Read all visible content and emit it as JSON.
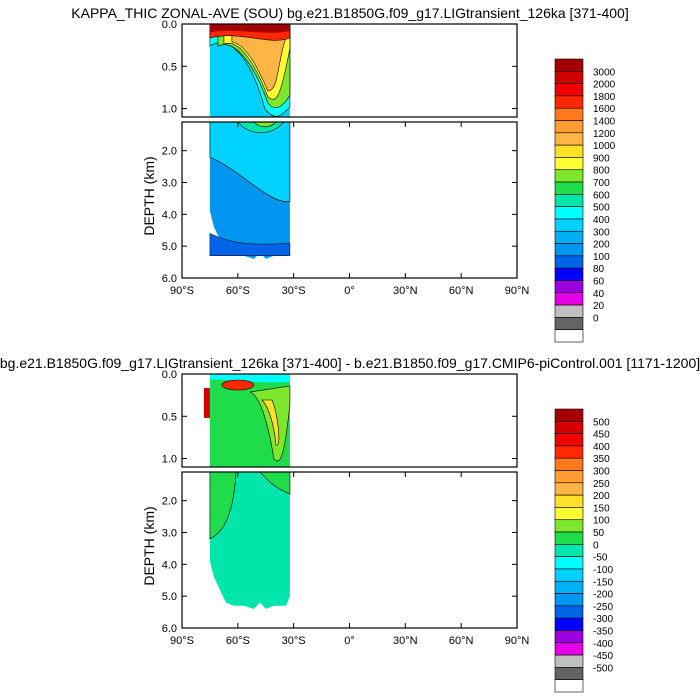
{
  "chart_data": [
    {
      "type": "heatmap",
      "title": "KAPPA_THIC ZONAL-AVE (SOU) bg.e21.B1850G.f09_g17.LIGtransient_126ka [371-400]",
      "ylabel": "DEPTH (km)",
      "xlabel": "",
      "x_ticks": [
        "90°S",
        "60°S",
        "30°S",
        "0°",
        "30°N",
        "60°N",
        "90°N"
      ],
      "x_tick_values": [
        -90,
        -60,
        -30,
        0,
        30,
        60,
        90
      ],
      "y_ticks_upper": [
        "0.0",
        "0.5",
        "1.0"
      ],
      "y_tick_values_upper": [
        0,
        0.5,
        1.0
      ],
      "y_ticks_lower": [
        "2.0",
        "3.0",
        "4.0",
        "5.0",
        "6.0"
      ],
      "y_tick_values_lower": [
        2,
        3,
        4,
        5,
        6
      ],
      "xlim": [
        -90,
        90
      ],
      "ylim_upper": [
        0,
        1.1
      ],
      "ylim_lower": [
        1.1,
        6
      ],
      "data_extent_lat": [
        -75,
        -32
      ],
      "colorbar_labels": [
        "3000",
        "2000",
        "1800",
        "1600",
        "1400",
        "1200",
        "1000",
        "900",
        "800",
        "700",
        "600",
        "500",
        "400",
        "300",
        "200",
        "100",
        "80",
        "60",
        "40",
        "20",
        "0"
      ],
      "colorbar_colors": [
        "#a50000",
        "#d40000",
        "#f20000",
        "#ff2800",
        "#ff7a1e",
        "#ff9c32",
        "#ffb446",
        "#ffe028",
        "#ffff33",
        "#7de62d",
        "#1edc4a",
        "#00e6aa",
        "#00ffff",
        "#00d2ff",
        "#00b0f5",
        "#0096f0",
        "#0064e6",
        "#0000ff",
        "#9b00e0",
        "#e600e6",
        "#c0c0c0",
        "#646464",
        "#ffffff"
      ]
    },
    {
      "type": "heatmap",
      "title": "bg.e21.B1850G.f09_g17.LIGtransient_126ka [371-400] - b.e21.B1850.f09_g17.CMIP6-piControl.001 [1171-1200]",
      "ylabel": "DEPTH (km)",
      "xlabel": "",
      "x_ticks": [
        "90°S",
        "60°S",
        "30°S",
        "0°",
        "30°N",
        "60°N",
        "90°N"
      ],
      "x_tick_values": [
        -90,
        -60,
        -30,
        0,
        30,
        60,
        90
      ],
      "y_ticks_upper": [
        "0.0",
        "0.5",
        "1.0"
      ],
      "y_tick_values_upper": [
        0,
        0.5,
        1.0
      ],
      "y_ticks_lower": [
        "2.0",
        "3.0",
        "4.0",
        "5.0",
        "6.0"
      ],
      "y_tick_values_lower": [
        2,
        3,
        4,
        5,
        6
      ],
      "xlim": [
        -90,
        90
      ],
      "ylim_upper": [
        0,
        1.1
      ],
      "ylim_lower": [
        1.1,
        6
      ],
      "data_extent_lat": [
        -75,
        -32
      ],
      "colorbar_labels": [
        "500",
        "450",
        "400",
        "350",
        "300",
        "250",
        "200",
        "150",
        "100",
        "50",
        "0",
        "-50",
        "-100",
        "-150",
        "-200",
        "-250",
        "-300",
        "-350",
        "-400",
        "-450",
        "-500"
      ],
      "colorbar_colors": [
        "#a50000",
        "#d40000",
        "#f20000",
        "#ff2800",
        "#ff7a1e",
        "#ff9c32",
        "#ffb446",
        "#ffe028",
        "#ffff33",
        "#7de62d",
        "#1edc4a",
        "#00e6aa",
        "#00ffff",
        "#00d2ff",
        "#00b0f5",
        "#0096f0",
        "#0064e6",
        "#0000ff",
        "#9b00e0",
        "#e600e6",
        "#c0c0c0",
        "#646464",
        "#ffffff"
      ]
    }
  ]
}
